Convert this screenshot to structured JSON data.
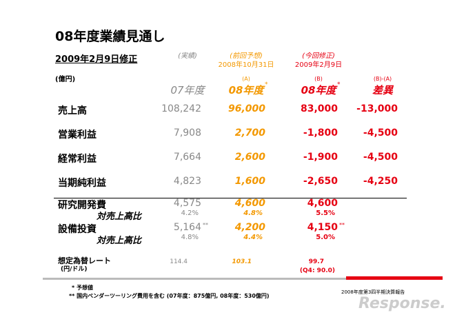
{
  "header": {
    "title": "08年度業績見通し",
    "subtitle": "2009年2月9日修正",
    "unit": "(億円)"
  },
  "columns": [
    {
      "note": "(実績)",
      "name": "07年度"
    },
    {
      "note": "(前回予想)",
      "date": "2008年10月31日",
      "tag": "(A)",
      "name": "08年度",
      "mark": "*"
    },
    {
      "note": "(今回修正)",
      "date": "2009年2月9日",
      "tag": "(B)",
      "name": "08年度",
      "mark": "*"
    },
    {
      "tag": "(B)-(A)",
      "name": "差異"
    }
  ],
  "rows": [
    {
      "label": "売上高",
      "values": [
        "108,242",
        "96,000",
        "83,000",
        "-13,000"
      ]
    },
    {
      "label": "営業利益",
      "values": [
        "7,908",
        "2,700",
        "-1,800",
        "-4,500"
      ]
    },
    {
      "label": "経常利益",
      "values": [
        "7,664",
        "2,600",
        "-1,900",
        "-4,500"
      ]
    },
    {
      "label": "当期純利益",
      "values": [
        "4,823",
        "1,600",
        "-2,650",
        "-4,250"
      ]
    }
  ],
  "cost_rows": [
    {
      "label": "研究開発費",
      "values": [
        {
          "text": "4,575"
        },
        {
          "text": "4,600"
        },
        {
          "text": "4,600"
        }
      ],
      "ratio_label": "対売上高比",
      "ratios": [
        "4.2%",
        "4.8%",
        "5.5%"
      ]
    },
    {
      "label": "設備投資",
      "values": [
        {
          "text": "5,164",
          "mark": "**"
        },
        {
          "text": "4,200"
        },
        {
          "text": "4,150",
          "mark": "**"
        }
      ],
      "ratio_label": "対売上高比",
      "ratios": [
        "4.8%",
        "4.4%",
        "5.0%"
      ]
    }
  ],
  "fx": {
    "label": "想定為替レート",
    "unit": "(円/ドル)",
    "values": [
      "114.4",
      "103.1",
      "99.7"
    ],
    "note": "(Q4: 90.0)"
  },
  "footnotes": [
    "* 予想値",
    "** 国内ベンダーツーリング費用を含む (07年度：875億円, 08年度：530億円)"
  ],
  "footer": "2008年度第3四半期決算報告",
  "watermark": "Response."
}
